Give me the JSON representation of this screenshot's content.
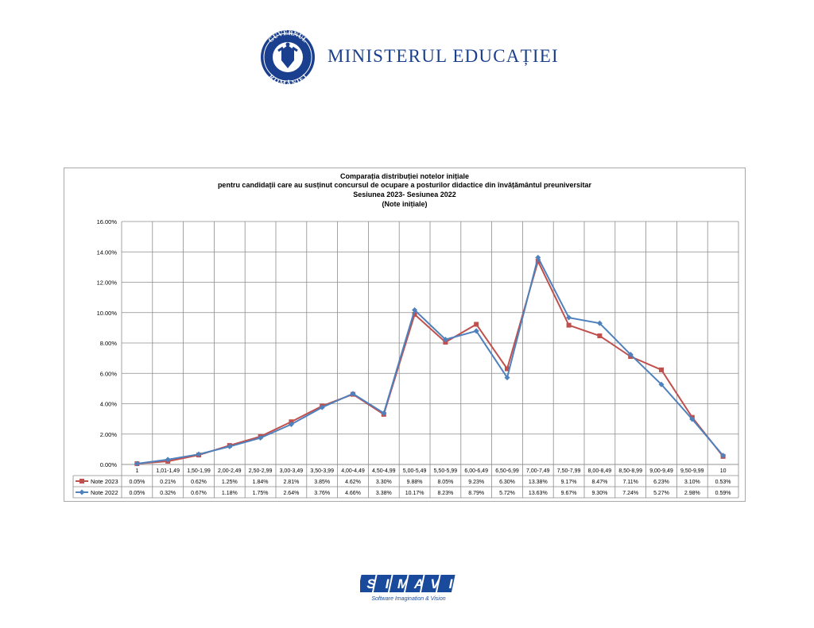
{
  "header": {
    "ministry_name": "MINISTERUL EDUCAȚIEI",
    "seal_text": "GUVERNUL ROMÂNIEI",
    "brand_color": "#1a3f8e"
  },
  "footer": {
    "company": "SIMAVI",
    "tagline": "Software Imagination & Vision",
    "brand_color": "#1a4a9c"
  },
  "chart_data": {
    "type": "line",
    "title_lines": [
      "Comparația distribuției notelor inițiale",
      "pentru candidații care au susținut concursul de ocupare a posturilor didactice din învățământul preuniversitar",
      "Sesiunea 2023- Sesiunea 2022",
      "(Note inițiale)"
    ],
    "categories": [
      "1",
      "1,01-1,49",
      "1,50-1,99",
      "2,00-2,49",
      "2,50-2,99",
      "3,00-3,49",
      "3,50-3,99",
      "4,00-4,49",
      "4,50-4,99",
      "5,00-5,49",
      "5,50-5,99",
      "6,00-6,49",
      "6,50-6,99",
      "7,00-7,49",
      "7,50-7,99",
      "8,00-8,49",
      "8,50-8,99",
      "9,00-9,49",
      "9,50-9,99",
      "10"
    ],
    "ylim": [
      0,
      16
    ],
    "y_ticks": [
      "0.00%",
      "2.00%",
      "4.00%",
      "6.00%",
      "8.00%",
      "10.00%",
      "12.00%",
      "14.00%",
      "16.00%"
    ],
    "grid": true,
    "legend": "data-table",
    "series": [
      {
        "name": "Note 2023",
        "color": "#c0504d",
        "marker": "square",
        "values": [
          0.05,
          0.21,
          0.62,
          1.25,
          1.84,
          2.81,
          3.85,
          4.62,
          3.3,
          9.88,
          8.05,
          9.23,
          6.3,
          13.38,
          9.17,
          8.47,
          7.11,
          6.23,
          3.1,
          0.53
        ],
        "labels": [
          "0.05%",
          "0.21%",
          "0.62%",
          "1.25%",
          "1.84%",
          "2.81%",
          "3.85%",
          "4.62%",
          "3.30%",
          "9.88%",
          "8.05%",
          "9.23%",
          "6.30%",
          "13.38%",
          "9.17%",
          "8.47%",
          "7.11%",
          "6.23%",
          "3.10%",
          "0.53%"
        ]
      },
      {
        "name": "Note 2022",
        "color": "#4f81bd",
        "marker": "diamond",
        "values": [
          0.05,
          0.32,
          0.67,
          1.18,
          1.75,
          2.64,
          3.76,
          4.66,
          3.38,
          10.17,
          8.23,
          8.79,
          5.72,
          13.63,
          9.67,
          9.3,
          7.24,
          5.27,
          2.98,
          0.59
        ],
        "labels": [
          "0.05%",
          "0.32%",
          "0.67%",
          "1.18%",
          "1.75%",
          "2.64%",
          "3.76%",
          "4.66%",
          "3.38%",
          "10.17%",
          "8.23%",
          "8.79%",
          "5.72%",
          "13.63%",
          "9.67%",
          "9.30%",
          "7.24%",
          "5.27%",
          "2.98%",
          "0.59%"
        ]
      }
    ]
  }
}
